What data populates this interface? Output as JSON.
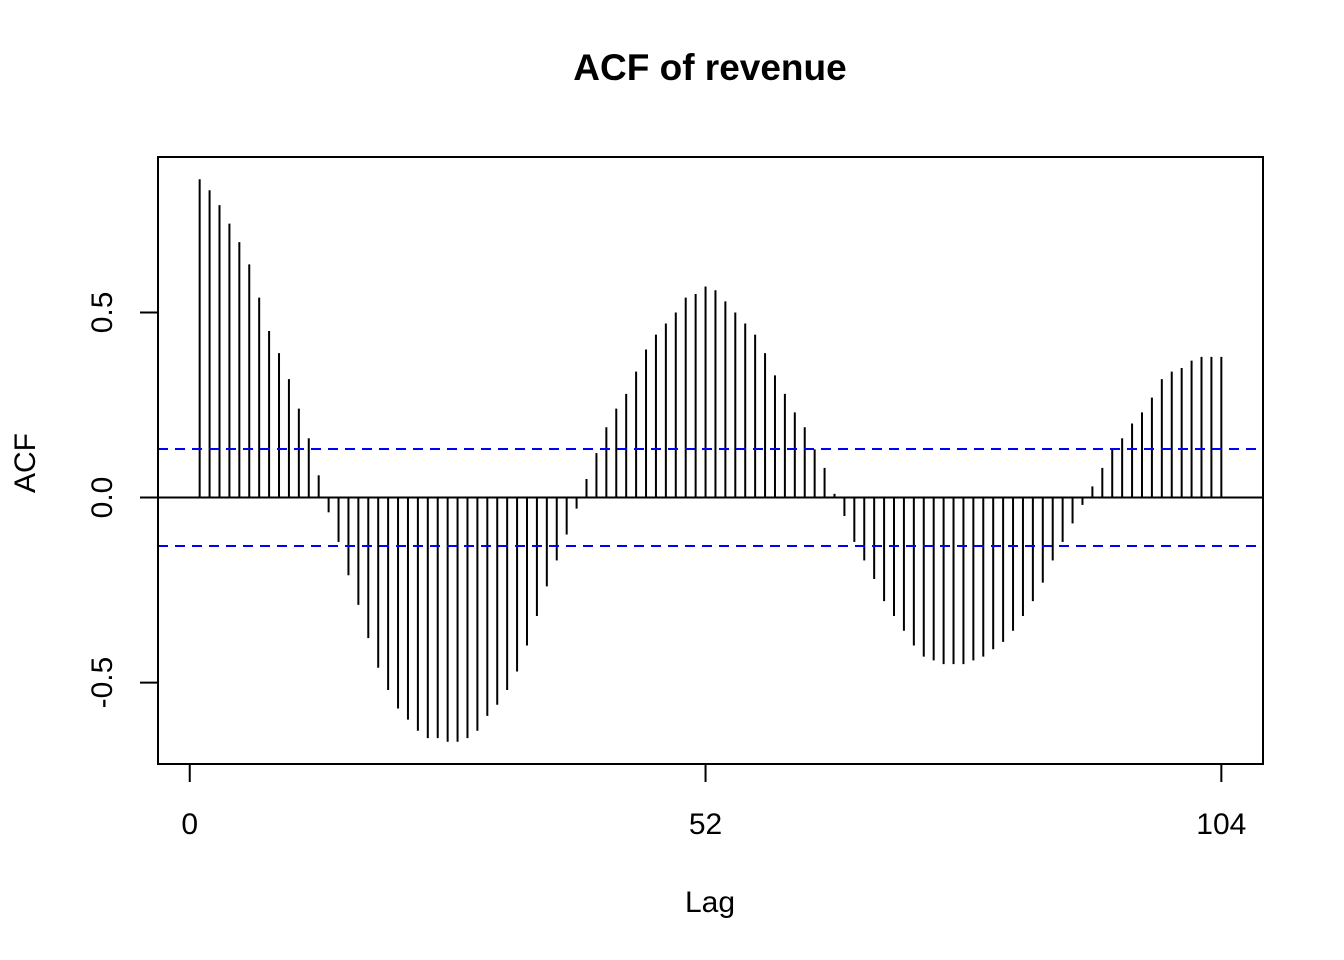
{
  "chart_data": {
    "type": "bar",
    "title": "ACF of revenue",
    "xlabel": "Lag",
    "ylabel": "ACF",
    "x_ticks": [
      "0",
      "52",
      "104"
    ],
    "x_tick_values": [
      0,
      52,
      104
    ],
    "y_ticks": [
      "-0.5",
      "0.0",
      "0.5"
    ],
    "y_tick_values": [
      -0.5,
      0.0,
      0.5
    ],
    "xlim": [
      -3.2,
      108.2
    ],
    "ylim": [
      -0.72,
      0.92
    ],
    "grid": false,
    "legend": "none",
    "confidence_band": {
      "upper": 0.131,
      "lower": -0.131,
      "color": "#0000ff",
      "style": "dashed"
    },
    "bar_color": "#000000",
    "lags": [
      1,
      2,
      3,
      4,
      5,
      6,
      7,
      8,
      9,
      10,
      11,
      12,
      13,
      14,
      15,
      16,
      17,
      18,
      19,
      20,
      21,
      22,
      23,
      24,
      25,
      26,
      27,
      28,
      29,
      30,
      31,
      32,
      33,
      34,
      35,
      36,
      37,
      38,
      39,
      40,
      41,
      42,
      43,
      44,
      45,
      46,
      47,
      48,
      49,
      50,
      51,
      52,
      53,
      54,
      55,
      56,
      57,
      58,
      59,
      60,
      61,
      62,
      63,
      64,
      65,
      66,
      67,
      68,
      69,
      70,
      71,
      72,
      73,
      74,
      75,
      76,
      77,
      78,
      79,
      80,
      81,
      82,
      83,
      84,
      85,
      86,
      87,
      88,
      89,
      90,
      91,
      92,
      93,
      94,
      95,
      96,
      97,
      98,
      99,
      100,
      101,
      102,
      103,
      104
    ],
    "values": [
      0.86,
      0.83,
      0.79,
      0.74,
      0.69,
      0.63,
      0.54,
      0.45,
      0.39,
      0.32,
      0.24,
      0.16,
      0.06,
      -0.04,
      -0.12,
      -0.21,
      -0.29,
      -0.38,
      -0.46,
      -0.52,
      -0.57,
      -0.6,
      -0.63,
      -0.65,
      -0.65,
      -0.66,
      -0.66,
      -0.65,
      -0.63,
      -0.59,
      -0.56,
      -0.52,
      -0.47,
      -0.4,
      -0.32,
      -0.24,
      -0.17,
      -0.1,
      -0.03,
      0.05,
      0.12,
      0.19,
      0.24,
      0.28,
      0.34,
      0.4,
      0.44,
      0.47,
      0.5,
      0.54,
      0.55,
      0.57,
      0.56,
      0.53,
      0.5,
      0.47,
      0.44,
      0.39,
      0.33,
      0.28,
      0.23,
      0.19,
      0.13,
      0.08,
      0.01,
      -0.05,
      -0.12,
      -0.17,
      -0.22,
      -0.28,
      -0.32,
      -0.36,
      -0.4,
      -0.43,
      -0.44,
      -0.45,
      -0.45,
      -0.45,
      -0.44,
      -0.43,
      -0.41,
      -0.39,
      -0.36,
      -0.32,
      -0.28,
      -0.23,
      -0.17,
      -0.12,
      -0.07,
      -0.02,
      0.03,
      0.08,
      0.13,
      0.16,
      0.2,
      0.23,
      0.27,
      0.32,
      0.34,
      0.35,
      0.37,
      0.38,
      0.38,
      0.38
    ]
  }
}
